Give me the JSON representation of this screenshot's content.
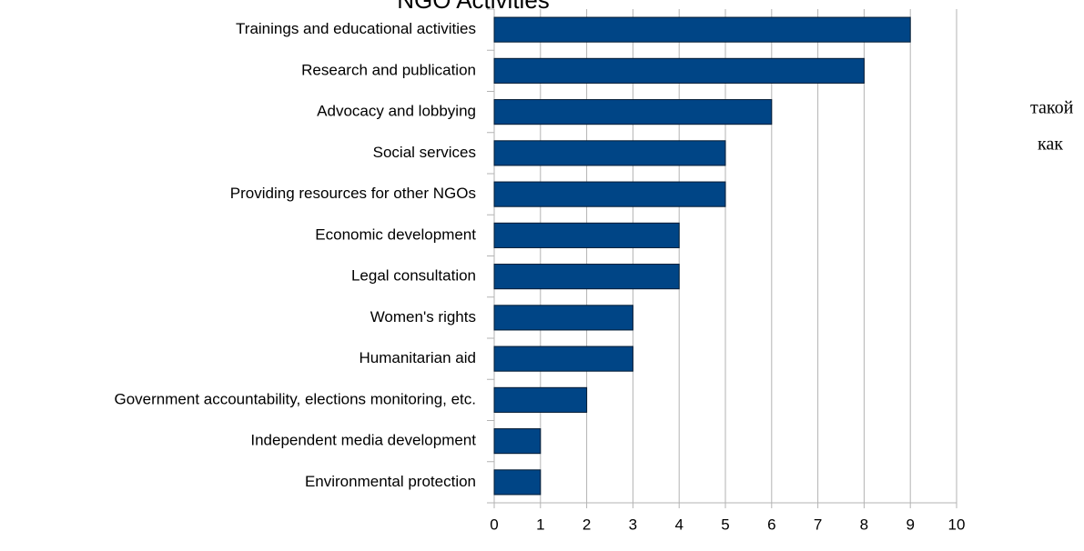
{
  "chart_data": {
    "type": "bar",
    "orientation": "horizontal",
    "title": "NGO Activities",
    "categories": [
      "Trainings and educational activities",
      "Research and publication",
      "Advocacy and lobbying",
      "Social services",
      "Providing resources for other NGOs",
      "Economic development",
      "Legal consultation",
      "Women's rights",
      "Humanitarian aid",
      "Government accountability, elections monitoring, etc.",
      "Independent media development",
      "Environmental protection"
    ],
    "values": [
      9,
      8,
      6,
      5,
      5,
      4,
      4,
      3,
      3,
      2,
      1,
      1
    ],
    "color": "#004586",
    "xlim": [
      0,
      10
    ],
    "xticks": [
      0,
      1,
      2,
      3,
      4,
      5,
      6,
      7,
      8,
      9,
      10
    ],
    "grid": true,
    "annotations": [
      "такой",
      "как"
    ]
  }
}
